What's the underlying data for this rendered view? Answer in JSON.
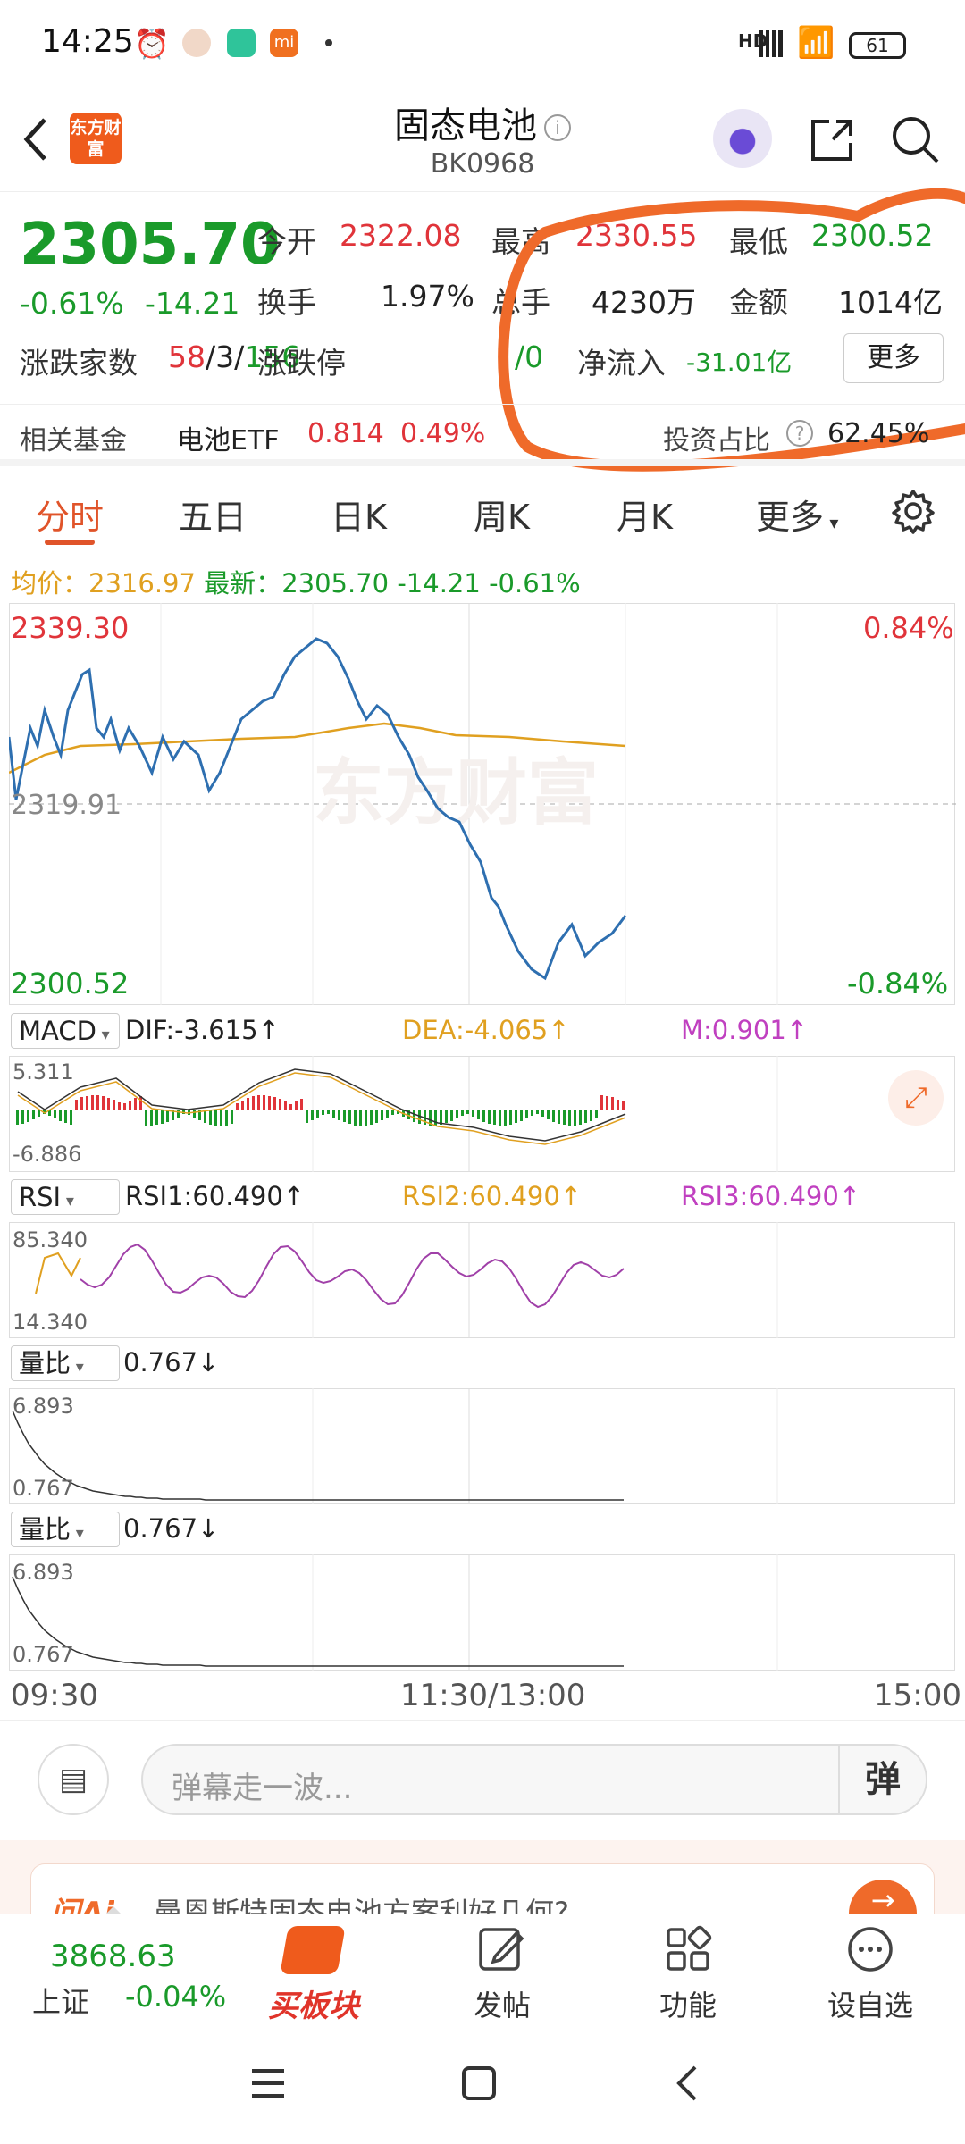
{
  "status": {
    "time": "14:25",
    "battery": "61",
    "signal": "HD"
  },
  "header": {
    "title": "固态电池",
    "code": "BK0968",
    "logo_text": "东方财富"
  },
  "quote": {
    "price": "2305.70",
    "change_pct": "-0.61%",
    "change": "-14.21",
    "open_label": "今开",
    "open": "2322.08",
    "high_label": "最高",
    "high": "2330.55",
    "low_label": "最低",
    "low": "2300.52",
    "turnover_label": "换手",
    "turnover": "1.97%",
    "volume_label": "总手",
    "volume": "4230万",
    "amount_label": "金额",
    "amount": "1014亿",
    "updown_label": "涨跌家数",
    "up": "58",
    "flat": "3",
    "down": "156",
    "limit_label": "涨跌停",
    "limit_value": "/0",
    "netflow_label": "净流入",
    "netflow": "-31.01亿",
    "more_button": "更多"
  },
  "fund": {
    "label": "相关基金",
    "name": "电池ETF",
    "price": "0.814",
    "pct": "0.49%",
    "invest_label": "投资占比",
    "invest_value": "62.45%"
  },
  "tabs": [
    "分时",
    "五日",
    "日K",
    "周K",
    "月K",
    "更多"
  ],
  "avgline": {
    "avg_label": "均价：",
    "avg": "2316.97",
    "latest_label": "最新：",
    "latest": "2305.70",
    "change": "-14.21",
    "pct": "-0.61%"
  },
  "main_chart": {
    "top_price": "2339.30",
    "bottom_price": "2300.52",
    "top_pct": "0.84%",
    "bottom_pct": "-0.84%",
    "mid_price": "2319.91"
  },
  "macd": {
    "name": "MACD",
    "dif": "DIF:-3.615↑",
    "dea": "DEA:-4.065↑",
    "m": "M:0.901↑",
    "max": "5.311",
    "min": "-6.886"
  },
  "rsi": {
    "name": "RSI",
    "rsi1": "RSI1:60.490↑",
    "rsi2": "RSI2:60.490↑",
    "rsi3": "RSI3:60.490↑",
    "max": "85.340",
    "min": "14.340"
  },
  "vol1": {
    "name": "量比",
    "value": "0.767↓",
    "max": "6.893",
    "min": "0.767"
  },
  "vol2": {
    "name": "量比",
    "value": "0.767↓",
    "max": "6.893",
    "min": "0.767"
  },
  "time_axis": {
    "start": "09:30",
    "mid": "11:30/13:00",
    "end": "15:00"
  },
  "chat": {
    "placeholder": "弹幕走一波...",
    "danmu": "弹"
  },
  "ai_banner": {
    "label": "问Ai",
    "text": "曼恩斯特固态电池方案利好几何?"
  },
  "bottom_nav": {
    "index_value": "3868.63",
    "index_name": "上证",
    "index_pct": "-0.04%",
    "buy": "买板块",
    "post": "发帖",
    "func": "功能",
    "watch": "设自选"
  },
  "colors": {
    "red": "#e0343a",
    "green": "#1a9a2a",
    "accent": "#e0542a",
    "price_line": "#2e6fb0",
    "avg_line": "#e0a020"
  }
}
